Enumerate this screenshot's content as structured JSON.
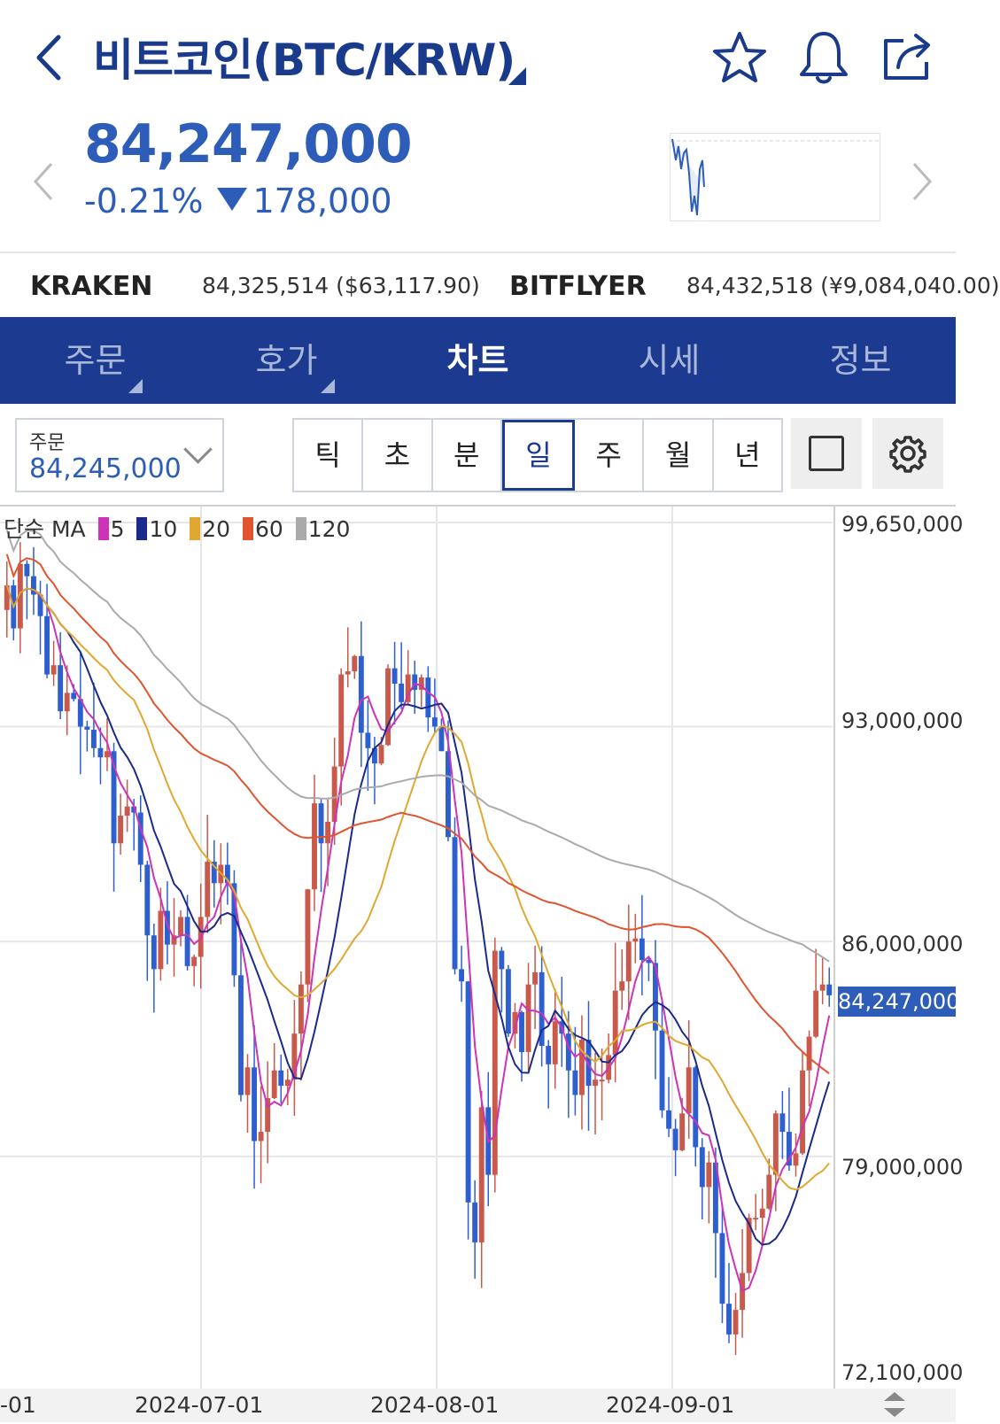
{
  "header": {
    "title": "비트코인(BTC/KRW)",
    "icons": [
      "back-icon",
      "star-icon",
      "bell-icon",
      "share-icon"
    ]
  },
  "price": {
    "current": "84,247,000",
    "change_pct": "-0.21%",
    "change_abs": "178,000",
    "direction": "down"
  },
  "exchanges": [
    {
      "name": "KRAKEN",
      "value": "84,325,514 ($63,117.90)"
    },
    {
      "name": "BITFLYER",
      "value": "84,432,518 (¥9,084,040.00)"
    }
  ],
  "tabs": [
    {
      "label": "주문",
      "active": false
    },
    {
      "label": "호가",
      "active": false
    },
    {
      "label": "차트",
      "active": true
    },
    {
      "label": "시세",
      "active": false
    },
    {
      "label": "정보",
      "active": false
    }
  ],
  "order_box": {
    "label": "주문",
    "value": "84,245,000"
  },
  "periods": [
    {
      "label": "틱",
      "active": false
    },
    {
      "label": "초",
      "active": false
    },
    {
      "label": "분",
      "active": false
    },
    {
      "label": "일",
      "active": true
    },
    {
      "label": "주",
      "active": false
    },
    {
      "label": "월",
      "active": false
    },
    {
      "label": "년",
      "active": false
    }
  ],
  "legend": {
    "prefix": "단순 MA",
    "items": [
      {
        "label": "5",
        "color": "#cc33b8"
      },
      {
        "label": "10",
        "color": "#1a2a8c"
      },
      {
        "label": "20",
        "color": "#e0a830"
      },
      {
        "label": "60",
        "color": "#e05530"
      },
      {
        "label": "120",
        "color": "#aaaaaa"
      }
    ]
  },
  "chart_data": {
    "type": "candlestick",
    "y_ticks": [
      "99,650,000",
      "93,000,000",
      "86,000,000",
      "79,000,000",
      "72,100,000"
    ],
    "x_ticks": [
      "-01",
      "2024-07-01",
      "2024-08-01",
      "2024-09-01"
    ],
    "last_price_label": "84,247,000",
    "up_color": "#c8594b",
    "down_color": "#2d5fcf",
    "ylim": [
      72100000,
      99650000
    ],
    "closes": [
      97600000,
      96200000,
      98300000,
      97900000,
      97300000,
      96600000,
      94700000,
      95000000,
      93500000,
      94100000,
      93900000,
      93000000,
      92900000,
      92300000,
      92000000,
      92200000,
      89200000,
      90100000,
      90400000,
      90200000,
      88500000,
      86200000,
      85100000,
      87000000,
      85900000,
      86200000,
      86800000,
      85200000,
      85500000,
      86800000,
      88600000,
      87900000,
      88500000,
      87900000,
      84900000,
      81000000,
      81900000,
      79500000,
      79800000,
      80900000,
      81800000,
      81300000,
      81500000,
      83000000,
      84600000,
      87700000,
      90500000,
      89200000,
      89900000,
      91700000,
      94700000,
      94800000,
      95300000,
      92800000,
      92300000,
      91800000,
      92400000,
      94900000,
      94400000,
      93800000,
      94700000,
      94200000,
      94600000,
      93300000,
      93000000,
      92200000,
      89400000,
      85100000,
      84700000,
      77500000,
      76200000,
      80600000,
      78400000,
      85700000,
      85100000,
      83000000,
      83700000,
      82400000,
      84600000,
      85000000,
      82600000,
      82000000,
      83400000,
      83000000,
      81800000,
      81000000,
      82800000,
      81300000,
      81500000,
      81500000,
      82300000,
      84400000,
      84700000,
      86000000,
      86100000,
      85400000,
      85300000,
      83100000,
      80500000,
      79900000,
      79200000,
      80400000,
      81900000,
      79300000,
      78000000,
      78800000,
      76500000,
      74200000,
      73200000,
      74000000,
      75200000,
      77000000,
      77000000,
      77300000,
      78400000,
      80400000,
      79800000,
      78700000,
      79100000,
      81800000,
      82900000,
      84400000,
      84600000,
      84247000
    ]
  }
}
